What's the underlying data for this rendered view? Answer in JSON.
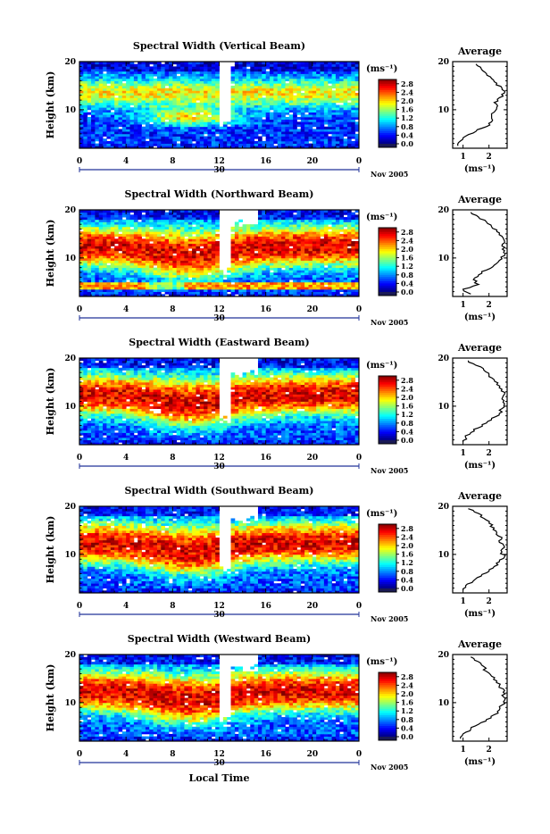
{
  "chart_data": [
    {
      "type": "heatmap",
      "title": "Spectral Width (Vertical Beam)",
      "ylabel": "Height (km)",
      "xlabel": "",
      "x_ticks": [
        "0",
        "4",
        "8",
        "12",
        "16",
        "20",
        "0"
      ],
      "y_ticks": [
        "20",
        "10"
      ],
      "date_mark": "30",
      "month_label": "Nov 2005",
      "xlim_hours": [
        0,
        24
      ],
      "ylim_km": [
        2,
        20
      ],
      "colorbar": {
        "unit": "(ms⁻¹)",
        "ticks": [
          "2.8",
          "2.4",
          "2.0",
          "1.6",
          "1.2",
          "0.8",
          "0.4",
          "0.0"
        ],
        "range": [
          0.0,
          3.0
        ]
      },
      "grid": false,
      "profile": {
        "title": "Average",
        "xlabel": "(ms⁻¹)",
        "x_ticks": [
          "1",
          "2"
        ],
        "y_ticks": [
          "20",
          "10"
        ],
        "xlim": [
          0.6,
          2.7
        ],
        "heights_km": [
          2.5,
          3.5,
          4.5,
          5.5,
          6.5,
          7.5,
          8.5,
          9.5,
          10.5,
          11.5,
          12.5,
          13.5,
          14.5,
          15.5,
          16.5,
          17.5,
          18.5,
          19.5
        ],
        "values": [
          0.8,
          0.9,
          1.1,
          1.5,
          1.9,
          2.1,
          2.1,
          2.2,
          2.3,
          2.2,
          2.4,
          2.6,
          2.5,
          2.3,
          2.1,
          1.9,
          1.7,
          1.5
        ]
      }
    },
    {
      "type": "heatmap",
      "title": "Spectral Width (Northward Beam)",
      "ylabel": "Height (km)",
      "xlabel": "",
      "x_ticks": [
        "0",
        "4",
        "8",
        "12",
        "16",
        "20",
        "0"
      ],
      "y_ticks": [
        "20",
        "10"
      ],
      "date_mark": "30",
      "month_label": "Nov 2005",
      "xlim_hours": [
        0,
        24
      ],
      "ylim_km": [
        2,
        20
      ],
      "colorbar": {
        "unit": "(ms⁻¹)",
        "ticks": [
          "2.8",
          "2.4",
          "2.0",
          "1.6",
          "1.2",
          "0.8",
          "0.4",
          "0.0"
        ],
        "range": [
          0.0,
          3.0
        ]
      },
      "grid": false,
      "profile": {
        "title": "Average",
        "xlabel": "(ms⁻¹)",
        "x_ticks": [
          "1",
          "2"
        ],
        "y_ticks": [
          "20",
          "10"
        ],
        "xlim": [
          0.6,
          2.7
        ],
        "heights_km": [
          2.5,
          3.5,
          4.5,
          5.5,
          6.5,
          7.5,
          8.5,
          9.5,
          10.5,
          11.5,
          12.5,
          13.5,
          14.5,
          15.5,
          16.5,
          17.5,
          18.5,
          19.5
        ],
        "values": [
          1.3,
          1.0,
          1.6,
          1.4,
          1.6,
          1.9,
          2.2,
          2.4,
          2.6,
          2.6,
          2.5,
          2.6,
          2.5,
          2.3,
          2.1,
          1.9,
          1.6,
          1.3
        ]
      }
    },
    {
      "type": "heatmap",
      "title": "Spectral Width (Eastward Beam)",
      "ylabel": "Height (km)",
      "xlabel": "",
      "x_ticks": [
        "0",
        "4",
        "8",
        "12",
        "16",
        "20",
        "0"
      ],
      "y_ticks": [
        "20",
        "10"
      ],
      "date_mark": "30",
      "month_label": "Nov 2005",
      "xlim_hours": [
        0,
        24
      ],
      "ylim_km": [
        2,
        20
      ],
      "colorbar": {
        "unit": "(ms⁻¹)",
        "ticks": [
          "2.8",
          "2.4",
          "2.0",
          "1.6",
          "1.2",
          "0.8",
          "0.4",
          "0.0"
        ],
        "range": [
          0.0,
          3.0
        ]
      },
      "grid": false,
      "profile": {
        "title": "Average",
        "xlabel": "(ms⁻¹)",
        "x_ticks": [
          "1",
          "2"
        ],
        "y_ticks": [
          "20",
          "10"
        ],
        "xlim": [
          0.6,
          2.7
        ],
        "heights_km": [
          2.5,
          3.5,
          4.5,
          5.5,
          6.5,
          7.5,
          8.5,
          9.5,
          10.5,
          11.5,
          12.5,
          13.5,
          14.5,
          15.5,
          16.5,
          17.5,
          18.5,
          19.5
        ],
        "values": [
          1.0,
          1.1,
          1.3,
          1.6,
          1.9,
          2.1,
          2.4,
          2.5,
          2.6,
          2.5,
          2.6,
          2.5,
          2.3,
          2.2,
          2.0,
          1.8,
          1.5,
          1.2
        ]
      }
    },
    {
      "type": "heatmap",
      "title": "Spectral Width (Southward Beam)",
      "ylabel": "Height (km)",
      "xlabel": "",
      "x_ticks": [
        "0",
        "4",
        "8",
        "12",
        "16",
        "20",
        "0"
      ],
      "y_ticks": [
        "20",
        "10"
      ],
      "date_mark": "30",
      "month_label": "Nov 2005",
      "xlim_hours": [
        0,
        24
      ],
      "ylim_km": [
        2,
        20
      ],
      "colorbar": {
        "unit": "(ms⁻¹)",
        "ticks": [
          "2.8",
          "2.4",
          "2.0",
          "1.6",
          "1.2",
          "0.8",
          "0.4",
          "0.0"
        ],
        "range": [
          0.0,
          3.0
        ]
      },
      "grid": false,
      "profile": {
        "title": "Average",
        "xlabel": "(ms⁻¹)",
        "x_ticks": [
          "1",
          "2"
        ],
        "y_ticks": [
          "20",
          "10"
        ],
        "xlim": [
          0.6,
          2.7
        ],
        "heights_km": [
          2.5,
          3.5,
          4.5,
          5.5,
          6.5,
          7.5,
          8.5,
          9.5,
          10.5,
          11.5,
          12.5,
          13.5,
          14.5,
          15.5,
          16.5,
          17.5,
          18.5,
          19.5
        ],
        "values": [
          1.0,
          1.1,
          1.4,
          1.7,
          2.0,
          2.2,
          2.4,
          2.6,
          2.5,
          2.6,
          2.4,
          2.5,
          2.3,
          2.2,
          2.0,
          1.8,
          1.6,
          1.2
        ]
      }
    },
    {
      "type": "heatmap",
      "title": "Spectral Width (Westward Beam)",
      "ylabel": "Height (km)",
      "xlabel": "Local Time",
      "x_ticks": [
        "0",
        "4",
        "8",
        "12",
        "16",
        "20",
        "0"
      ],
      "y_ticks": [
        "20",
        "10"
      ],
      "date_mark": "30",
      "month_label": "Nov 2005",
      "xlim_hours": [
        0,
        24
      ],
      "ylim_km": [
        2,
        20
      ],
      "colorbar": {
        "unit": "(ms⁻¹)",
        "ticks": [
          "2.8",
          "2.4",
          "2.0",
          "1.6",
          "1.2",
          "0.8",
          "0.4",
          "0.0"
        ],
        "range": [
          0.0,
          3.0
        ]
      },
      "grid": false,
      "profile": {
        "title": "Average",
        "xlabel": "(ms⁻¹)",
        "x_ticks": [
          "1",
          "2"
        ],
        "y_ticks": [
          "20",
          "10"
        ],
        "xlim": [
          0.6,
          2.7
        ],
        "heights_km": [
          2.5,
          3.5,
          4.5,
          5.5,
          6.5,
          7.5,
          8.5,
          9.5,
          10.5,
          11.5,
          12.5,
          13.5,
          14.5,
          15.5,
          16.5,
          17.5,
          18.5,
          19.5
        ],
        "values": [
          0.9,
          1.0,
          1.3,
          1.6,
          1.9,
          2.2,
          2.4,
          2.5,
          2.6,
          2.5,
          2.6,
          2.4,
          2.3,
          2.1,
          1.9,
          1.8,
          1.6,
          1.3
        ]
      }
    }
  ]
}
